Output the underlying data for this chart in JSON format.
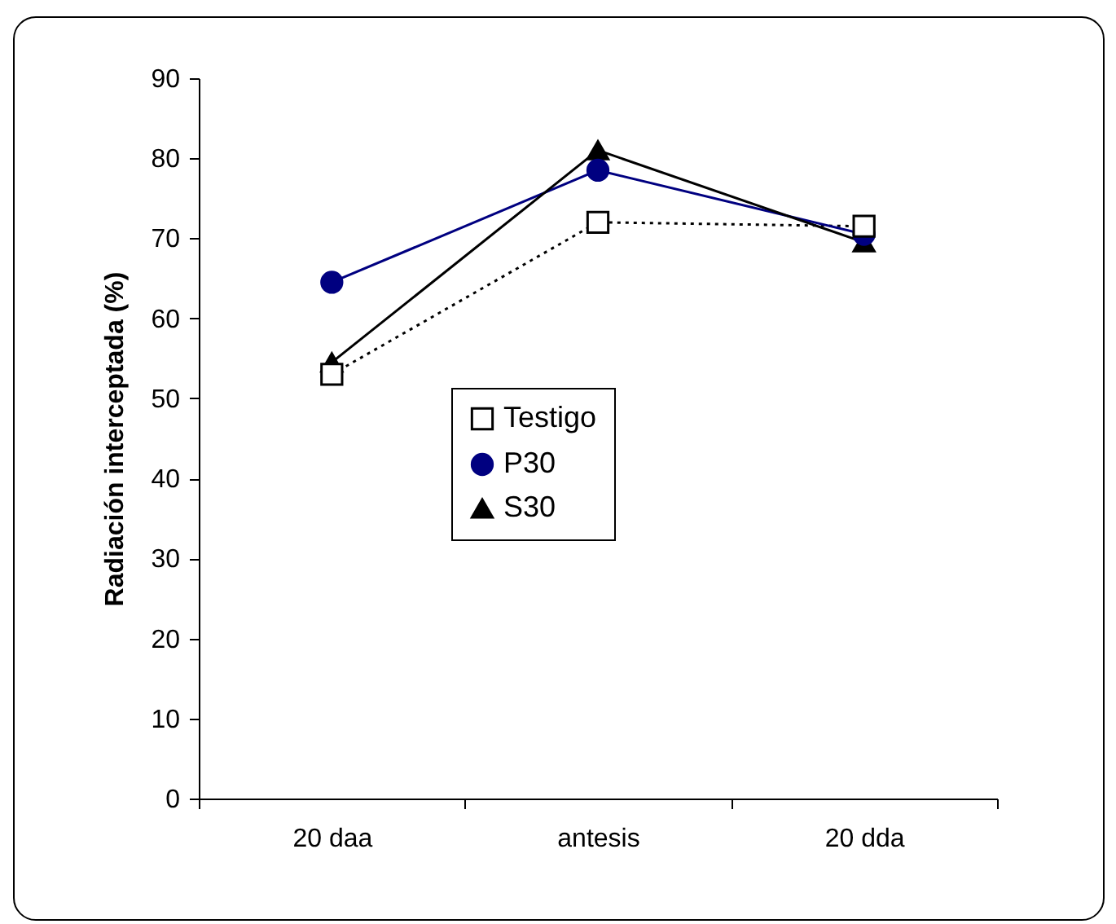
{
  "chart_data": {
    "type": "line",
    "ylabel": "Radiación interceptada (%)",
    "categories": [
      "20 daa",
      "antesis",
      "20 dda"
    ],
    "series": [
      {
        "name": "Testigo",
        "color": "#000000",
        "marker": "square",
        "line_style": "dotted",
        "values": [
          53,
          72,
          71.5
        ]
      },
      {
        "name": "P30",
        "color": "#000080",
        "marker": "circle",
        "line_style": "solid",
        "values": [
          64.5,
          78.5,
          70.5
        ]
      },
      {
        "name": "S30",
        "color": "#000000",
        "marker": "triangle",
        "line_style": "solid",
        "values": [
          54.5,
          81,
          69.5
        ]
      }
    ],
    "ylim": [
      0,
      90
    ],
    "yticks": [
      0,
      10,
      20,
      30,
      40,
      50,
      60,
      70,
      80,
      90
    ],
    "grid": false,
    "legend": "center"
  }
}
